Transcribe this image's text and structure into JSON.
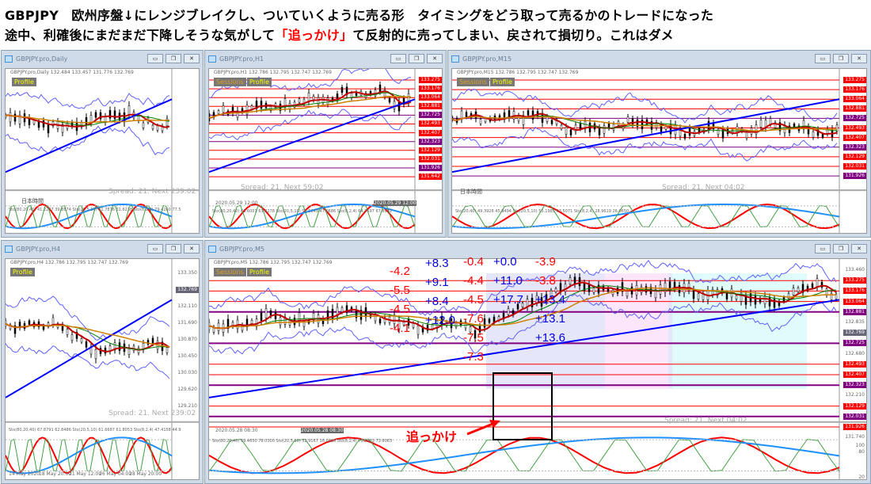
{
  "header": {
    "line1": "GBPJPY　欧州序盤↓にレンジブレイクし、ついていくように売る形　タイミングをどう取って売るかのトレードになった",
    "line2_a": "途中、利確後にまだまだ下降しそうな気がして",
    "line2_red": "「追っかけ」",
    "line2_b": "て反射的に売ってしまい、戻されて損切り。これはダメ"
  },
  "windows": {
    "daily": {
      "title": "GBPJPY.pro,Daily",
      "info": "GBPJPY.pro,Daily 132.484 133.457 131.776 132.769",
      "profile": "Profile",
      "spread": "Spread: 21. Next 239:02",
      "label": "日本時間",
      "sto": "Sto(80,20,40) 41.2247 39.8874  Sto(20,5,10) 41.7876 31.6238  Sto(8,2,4) 79.4260 77.5"
    },
    "h1": {
      "title": "GBPJPY.pro,H1",
      "info": "GBPJPY.pro,H1 132.786 132.795 132.747 132.769",
      "sessions": "Sessions",
      "profile": "Profile",
      "spread": "Spread: 21. Next 59:02",
      "date1": "2020.05.29 12:00",
      "date2": "2020.05.29 12:00",
      "sto": "Sto(80,20,40) 63.6001 63.8278  Sto(20,5,10) 52.5249 47.0686  Sto(8,2,4) 64.2697 67.8932"
    },
    "m15": {
      "title": "GBPJPY.pro,M15",
      "info": "GBPJPY.pro,M15 132.786 132.795 132.747 132.769",
      "sessions": "Sessions",
      "profile": "Profile",
      "spread": "Spread: 21. Next 04:02",
      "label": "日本時間",
      "sto": "Sto(20,40) 49.3928 45.9494  Sto(20,5,10) 55.1985 63.5071  Sto(8,2,4) 28.9619 26.0650"
    },
    "h4": {
      "title": "GBPJPY.pro,H4",
      "info": "GBPJPY.pro,H4 132.786 132.795 132.747 132.769",
      "profile": "Profile",
      "spread": "Spread: 21. Next 239:02",
      "sto": "Sto(80,20,40) 67.8791 62.8486  Sto(20,5,10) 61.6687 61.8053  Sto(8,2,4) 47.4158 44.9",
      "dates": [
        "14 May 2020",
        "18 May 20:00",
        "21 May 12:00",
        "26 May 04:00",
        "28 May 20:00"
      ],
      "axis": [
        "133.350",
        "132.769",
        "132.110",
        "131.690",
        "130.870",
        "130.450",
        "130.030",
        "129.620",
        "129.210"
      ]
    },
    "m5": {
      "title": "GBPJPY.pro,M5",
      "info": "GBPJPY.pro,M5 132.786 132.795 132.747 132.769",
      "sessions": "Sessions",
      "profile": "Profile",
      "spread": "Spread: 21. Next 04:02",
      "date1": "2020.05.28 08:30",
      "date2": "2020.05.28 08:30",
      "sto": "Sto(80,20,40) 69.4650 78.0300  Sto(20,5,10) 32.9167 16.0086  Sto(8,2,4) 75.5203 73.6083",
      "axis": [
        {
          "v": "133.460",
          "t": "plain"
        },
        {
          "v": "133.275",
          "t": "red"
        },
        {
          "v": "133.176",
          "t": "red"
        },
        {
          "v": "133.064",
          "t": "red"
        },
        {
          "v": "132.881",
          "t": "purple"
        },
        {
          "v": "132.835",
          "t": "plain"
        },
        {
          "v": "132.769",
          "t": "grey"
        },
        {
          "v": "132.725",
          "t": "purple"
        },
        {
          "v": "132.680",
          "t": "plain"
        },
        {
          "v": "132.493",
          "t": "red"
        },
        {
          "v": "132.407",
          "t": "red"
        },
        {
          "v": "132.323",
          "t": "purple"
        },
        {
          "v": "132.210",
          "t": "plain"
        },
        {
          "v": "132.129",
          "t": "red"
        },
        {
          "v": "132.031",
          "t": "purple"
        },
        {
          "v": "131.926",
          "t": "red"
        },
        {
          "v": "131.740",
          "t": "plain"
        }
      ],
      "osc_axis": [
        "100",
        "80",
        "20",
        "0"
      ]
    }
  },
  "h1_levels": [
    "133.275",
    "133.176",
    "133.064",
    "132.881",
    "132.725",
    "132.493",
    "132.407",
    "132.323",
    "132.129",
    "132.031",
    "131.926",
    "131.642"
  ],
  "m15_levels": [
    "133.275",
    "133.176",
    "133.064",
    "132.881",
    "132.725",
    "132.493",
    "132.407",
    "132.323",
    "132.129",
    "132.031",
    "131.926"
  ],
  "annotations": {
    "col1": [
      "-4.2",
      "-5.5",
      "-4.5",
      "-4.1"
    ],
    "col2": [
      "+8.3",
      "+9.1",
      "+8.4",
      "+12.0"
    ],
    "col3": [
      "-0.4",
      "-4.4",
      "-4.5",
      "-7.6",
      "-7.5",
      "-7.3"
    ],
    "col4": [
      "+0.0",
      "+11.0",
      "+17.7"
    ],
    "col5": [
      "-3.9",
      "-3.8",
      "+13.4",
      "+13.1",
      "+13.6"
    ],
    "chase": "追っかけ"
  },
  "colors": {
    "red_level": "#ff0000",
    "purple_level": "#800080",
    "loss": "#ff0000",
    "gain": "#0000e0"
  }
}
